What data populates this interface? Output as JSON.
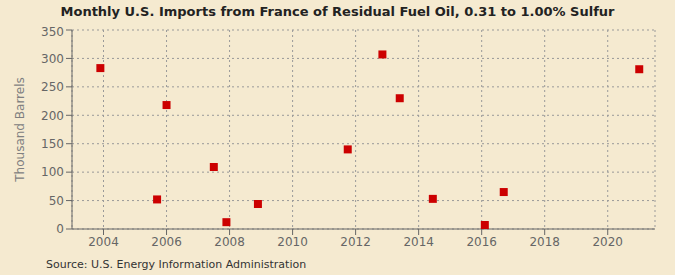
{
  "chart_data": {
    "type": "scatter",
    "title": "Monthly U.S. Imports from France of Residual Fuel Oil, 0.31 to 1.00% Sulfur",
    "ylabel": "Thousand Barrels",
    "source": "Source: U.S. Energy Information Administration",
    "x": [
      2003.9,
      2005.7,
      2006.0,
      2007.5,
      2007.9,
      2008.9,
      2011.75,
      2012.85,
      2013.4,
      2014.45,
      2016.1,
      2016.7,
      2021.0
    ],
    "values": [
      283,
      52,
      218,
      109,
      12,
      44,
      140,
      307,
      230,
      53,
      7,
      65,
      281
    ],
    "color": "#cc0000",
    "marker": "square",
    "xlim": [
      2003.0,
      2021.5
    ],
    "ylim": [
      0,
      350
    ],
    "xticks": [
      2004,
      2006,
      2008,
      2010,
      2012,
      2014,
      2016,
      2018,
      2020
    ],
    "yticks": [
      0,
      50,
      100,
      150,
      200,
      250,
      300,
      350
    ],
    "grid": true
  }
}
